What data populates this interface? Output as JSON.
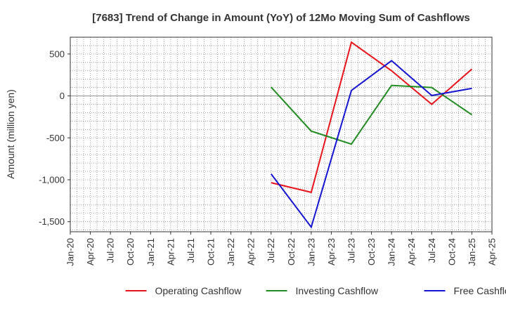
{
  "chart_data": {
    "type": "line",
    "title": "[7683]  Trend of Change in Amount (YoY) of 12Mo Moving Sum of Cashflows",
    "xlabel": "",
    "ylabel": "Amount (million yen)",
    "ylim": [
      -1620,
      700
    ],
    "yticks": [
      500,
      0,
      -500,
      -1000,
      -1500
    ],
    "ytick_labels": [
      "500",
      "0",
      "-500",
      "-1,000",
      "-1,500"
    ],
    "x_tick_labels": [
      "Jan-20",
      "Apr-20",
      "Jul-20",
      "Oct-20",
      "Jan-21",
      "Apr-21",
      "Jul-21",
      "Oct-21",
      "Jan-22",
      "Apr-22",
      "Jul-22",
      "Oct-22",
      "Jan-23",
      "Apr-23",
      "Jul-23",
      "Oct-23",
      "Jan-24",
      "Apr-24",
      "Jul-24",
      "Oct-24",
      "Jan-25",
      "Apr-25"
    ],
    "grid": true,
    "legend_position": "bottom",
    "series": [
      {
        "name": "Operating Cashflow",
        "color": "#e8141b",
        "points": [
          {
            "x": "Jul-22",
            "y": -1035
          },
          {
            "x": "Jan-23",
            "y": -1150
          },
          {
            "x": "Jul-23",
            "y": 640
          },
          {
            "x": "Jan-24",
            "y": 300
          },
          {
            "x": "Jul-24",
            "y": -100
          },
          {
            "x": "Jan-25",
            "y": 320
          }
        ]
      },
      {
        "name": "Investing Cashflow",
        "color": "#228b22",
        "points": [
          {
            "x": "Jul-22",
            "y": 105
          },
          {
            "x": "Jan-23",
            "y": -420
          },
          {
            "x": "Jul-23",
            "y": -575
          },
          {
            "x": "Jan-24",
            "y": 125
          },
          {
            "x": "Jul-24",
            "y": 100
          },
          {
            "x": "Jan-25",
            "y": -225
          }
        ]
      },
      {
        "name": "Free Cashflow",
        "color": "#1414d2",
        "points": [
          {
            "x": "Jul-22",
            "y": -930
          },
          {
            "x": "Jan-23",
            "y": -1565
          },
          {
            "x": "Jul-23",
            "y": 65
          },
          {
            "x": "Jan-24",
            "y": 420
          },
          {
            "x": "Jul-24",
            "y": 5
          },
          {
            "x": "Jan-25",
            "y": 90
          }
        ]
      }
    ]
  }
}
